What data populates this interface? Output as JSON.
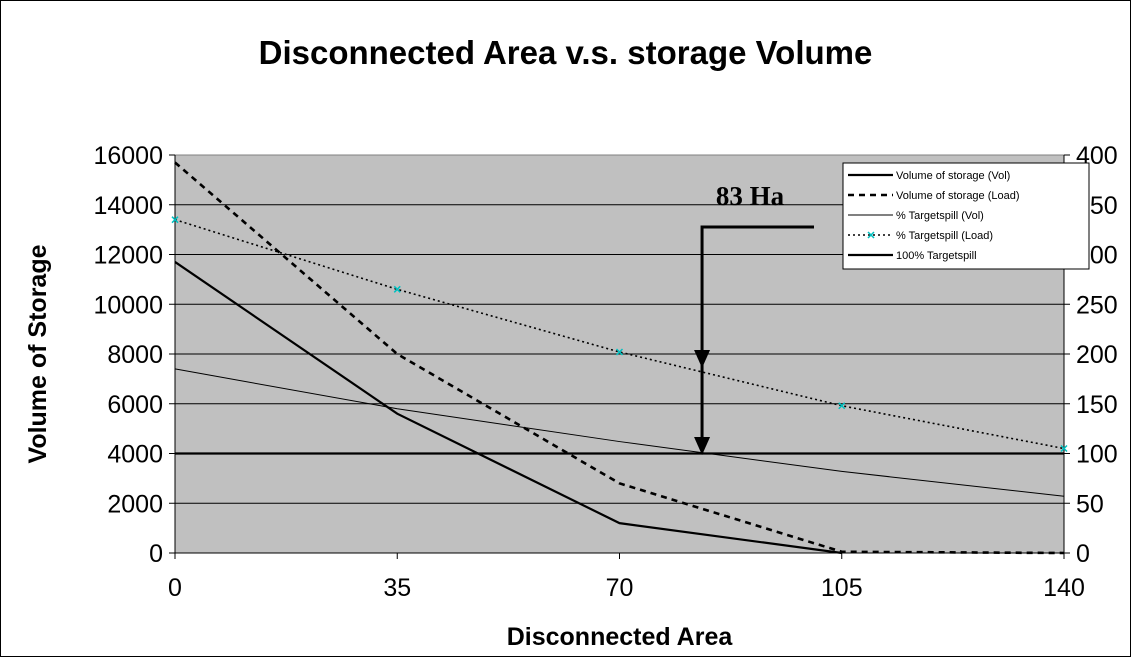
{
  "chart_data": {
    "type": "line",
    "title": "Disconnected Area v.s. storage Volume",
    "xlabel": "Disconnected Area",
    "ylabel": "Volume of Storage",
    "x": [
      0,
      35,
      70,
      105,
      140
    ],
    "x_ticks": [
      "0",
      "35",
      "70",
      "105",
      "140"
    ],
    "xlim": [
      0,
      140
    ],
    "ylim": [
      0,
      16000
    ],
    "y_ticks": [
      "0",
      "2000",
      "4000",
      "6000",
      "8000",
      "10000",
      "12000",
      "14000",
      "16000"
    ],
    "y2lim": [
      0,
      400
    ],
    "y2_ticks": [
      "0",
      "50",
      "100",
      "150",
      "200",
      "250",
      "300",
      "350",
      "400"
    ],
    "grid": true,
    "legend_position": "top-right",
    "series": [
      {
        "name": "Volume of storage (Vol)",
        "axis": "left",
        "style": "solid-thick",
        "values": [
          11700,
          5600,
          1200,
          0,
          null
        ]
      },
      {
        "name": "Volume of storage (Load)",
        "axis": "left",
        "style": "dashed-thick",
        "values": [
          15700,
          8000,
          2800,
          50,
          0
        ]
      },
      {
        "name": "% Targetspill (Vol)",
        "axis": "right",
        "style": "solid-thin",
        "values": [
          185,
          145,
          112,
          82,
          57
        ]
      },
      {
        "name": "% Targetspill (Load)",
        "axis": "right",
        "style": "dotted-markers",
        "values": [
          335,
          265,
          202,
          148,
          105
        ]
      },
      {
        "name": "100% Targetspill",
        "axis": "right",
        "style": "solid-thick",
        "values": [
          100,
          100,
          100,
          100,
          100
        ]
      }
    ],
    "annotations": [
      {
        "text": "83 Ha",
        "x": 83
      }
    ]
  },
  "colors": {
    "plot_background": "#c0c0c0",
    "line": "#000000",
    "marker": "#00c0c0",
    "grid": "#000000"
  }
}
